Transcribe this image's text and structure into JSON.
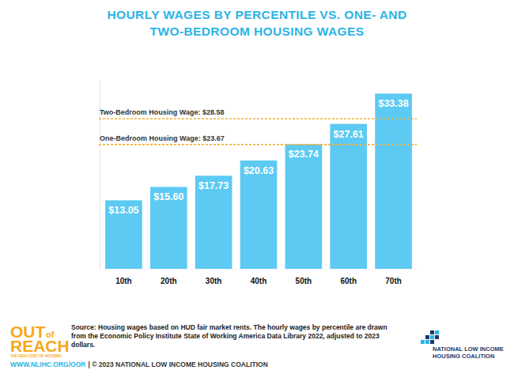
{
  "chart_data": {
    "type": "bar",
    "title": [
      "HOURLY WAGES BY PERCENTILE VS. ONE- AND",
      "TWO-BEDROOM HOUSING WAGES"
    ],
    "categories": [
      "10th",
      "20th",
      "30th",
      "40th",
      "50th",
      "60th",
      "70th"
    ],
    "values": [
      13.05,
      15.6,
      17.73,
      20.63,
      23.74,
      27.61,
      33.38
    ],
    "value_labels": [
      "$13.05",
      "$15.60",
      "$17.73",
      "$20.63",
      "$23.74",
      "$27.61",
      "$33.38"
    ],
    "color": "#5ccaf2",
    "ylim": [
      0,
      36
    ],
    "grid": false,
    "data_labels": true,
    "tick_labels": "x",
    "reference_lines": [
      {
        "label": "Two-Bedroom Housing Wage: $28.58",
        "value": 28.58
      },
      {
        "label": "One-Bedroom Housing Wage: $23.67",
        "value": 23.67
      }
    ],
    "source": "Source: Housing wages based on HUD fair market rents. The hourly wages by percentile are drawn from the Economic Policy Institute State of Working America Data Library 2022, adjusted to 2023 dollars."
  },
  "branding": {
    "report_logo": {
      "lines": [
        "OUT",
        "of",
        "REACH"
      ],
      "tagline": "THE HIGH COST OF HOUSING"
    },
    "url": "WWW.NLIHC.ORG/OOR",
    "copyright": "| © 2023 NATIONAL LOW INCOME HOUSING COALITION",
    "organization": [
      "NATIONAL LOW INCOME",
      "HOUSING COALITION"
    ]
  }
}
